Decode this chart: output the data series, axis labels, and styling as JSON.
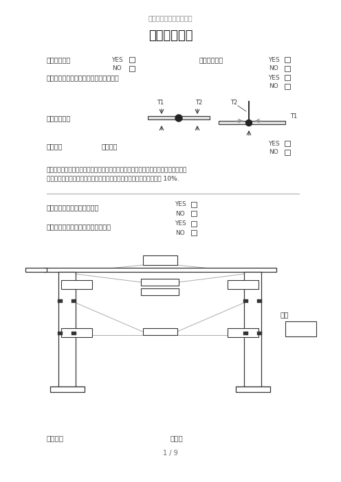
{
  "title_small": "起重机出厂检验报告格式",
  "title_main": "电焊检验报告",
  "bg_color": "#ffffff",
  "text_color": "#333333",
  "row1_left_label": "咬边是否修补",
  "row1_right_label": "焊缝是否包角",
  "row2_note": "清除飞溅，打磨，其它缺陷修补是否完成",
  "section2_label": "对接及熔透焊",
  "section3_label": "外观检查",
  "section3_text": "是否合格",
  "note_line1": "无损探伤根据图纸及有关标准另外给出无损探伤报告所有开坡口焊缝必须做无损探伤，",
  "note_line2": "如果图纸未标明无损探伤百分比，科尼起重机公司标准要求必须不少于 10%.",
  "section4_label1": "箱形内焊缝是否符合技术要求",
  "section4_label2": "腹板加固角钢和箱板槽间距是否相等",
  "footer_left": "质检员：",
  "footer_right": "日期：",
  "page": "1 / 9"
}
